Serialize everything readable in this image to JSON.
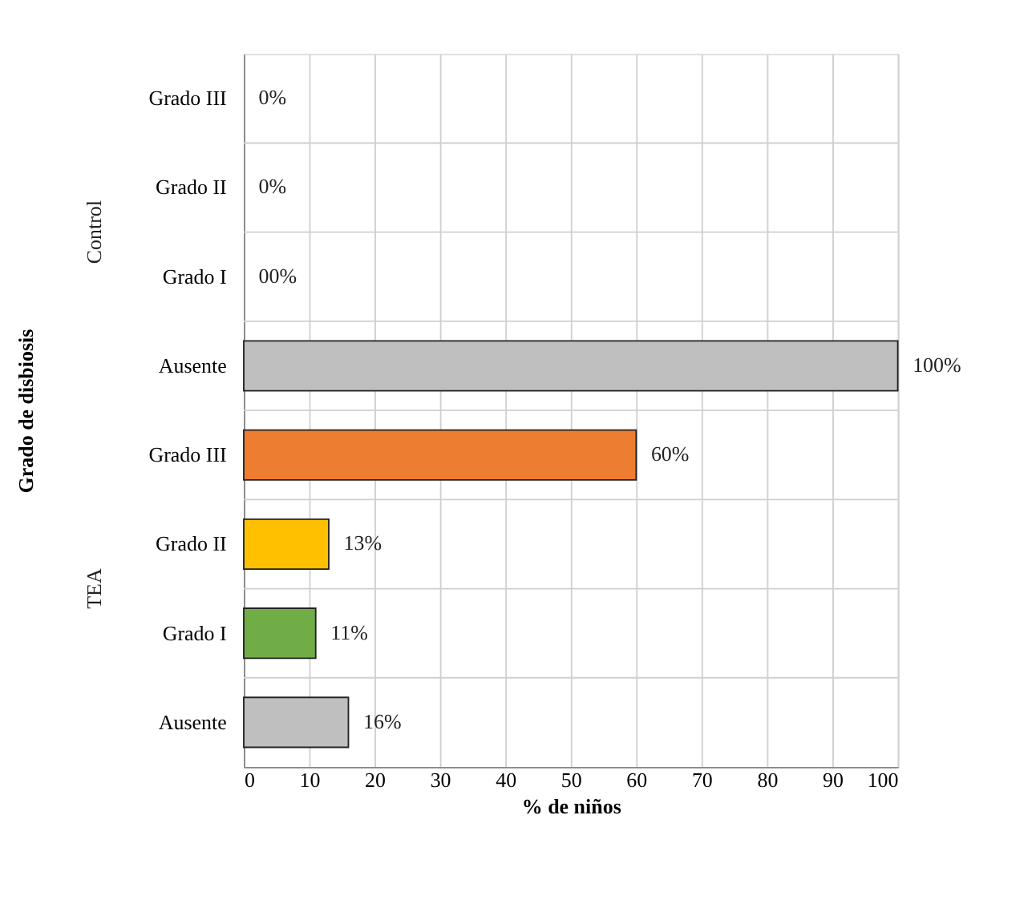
{
  "chart_data": {
    "type": "bar",
    "orientation": "horizontal",
    "xlabel": "% de niños",
    "ylabel": "Grado de disbiosis",
    "categories": [
      "Grado III",
      "Grado II",
      "Grado I",
      "Ausente",
      "Grado III",
      "Grado II",
      "Grado I",
      "Ausente"
    ],
    "annotations": [
      "Control",
      "TEA"
    ],
    "values": [
      0,
      0,
      0,
      100,
      60,
      13,
      11,
      16
    ],
    "value_labels": [
      "0%",
      "0%",
      "00%",
      "100%",
      "60%",
      "13%",
      "11%",
      "16%"
    ],
    "colors": [
      "#bfbfbf",
      "#ffc000",
      "#70ad47",
      "#bfbfbf",
      "#ed7d31",
      "#ffc000",
      "#70ad47",
      "#bfbfbf"
    ],
    "xlim": [
      0,
      100
    ],
    "xticks": [
      0,
      10,
      20,
      30,
      40,
      50,
      60,
      70,
      80,
      90,
      100
    ],
    "grid": true
  }
}
